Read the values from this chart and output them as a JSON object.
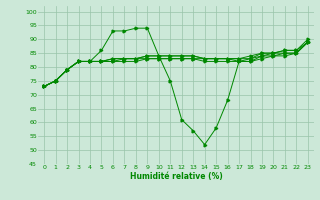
{
  "bg_color": "#cce8d8",
  "grid_color": "#99c4aa",
  "line_color": "#008800",
  "xlabel": "Humidité relative (%)",
  "ylim": [
    45,
    102
  ],
  "xlim": [
    -0.5,
    23.5
  ],
  "yticks": [
    45,
    50,
    55,
    60,
    65,
    70,
    75,
    80,
    85,
    90,
    95,
    100
  ],
  "xticks": [
    0,
    1,
    2,
    3,
    4,
    5,
    6,
    7,
    8,
    9,
    10,
    11,
    12,
    13,
    14,
    15,
    16,
    17,
    18,
    19,
    20,
    21,
    22,
    23
  ],
  "lines": [
    {
      "x": [
        0,
        1,
        2,
        3,
        4,
        5,
        6,
        7,
        8,
        9,
        10,
        11,
        12,
        13,
        14,
        15,
        16,
        17,
        18,
        19,
        20,
        21,
        22,
        23
      ],
      "y": [
        73,
        75,
        79,
        82,
        82,
        86,
        93,
        93,
        94,
        94,
        84,
        75,
        61,
        57,
        52,
        58,
        68,
        82,
        83,
        85,
        85,
        86,
        86,
        90
      ]
    },
    {
      "x": [
        0,
        1,
        2,
        3,
        4,
        5,
        6,
        7,
        8,
        9,
        10,
        11,
        12,
        13,
        14,
        15,
        16,
        17,
        18,
        19,
        20,
        21,
        22,
        23
      ],
      "y": [
        73,
        75,
        79,
        82,
        82,
        82,
        83,
        83,
        83,
        84,
        84,
        84,
        84,
        84,
        83,
        83,
        83,
        83,
        84,
        85,
        85,
        86,
        86,
        89
      ]
    },
    {
      "x": [
        0,
        1,
        2,
        3,
        4,
        5,
        6,
        7,
        8,
        9,
        10,
        11,
        12,
        13,
        14,
        15,
        16,
        17,
        18,
        19,
        20,
        21,
        22,
        23
      ],
      "y": [
        73,
        75,
        79,
        82,
        82,
        82,
        83,
        83,
        83,
        84,
        84,
        84,
        84,
        84,
        83,
        83,
        83,
        83,
        83,
        84,
        85,
        85,
        85,
        89
      ]
    },
    {
      "x": [
        0,
        1,
        2,
        3,
        4,
        5,
        6,
        7,
        8,
        9,
        10,
        11,
        12,
        13,
        14,
        15,
        16,
        17,
        18,
        19,
        20,
        21,
        22,
        23
      ],
      "y": [
        73,
        75,
        79,
        82,
        82,
        82,
        82,
        83,
        83,
        83,
        83,
        83,
        83,
        83,
        83,
        83,
        83,
        82,
        82,
        84,
        84,
        85,
        85,
        89
      ]
    },
    {
      "x": [
        0,
        1,
        2,
        3,
        4,
        5,
        6,
        7,
        8,
        9,
        10,
        11,
        12,
        13,
        14,
        15,
        16,
        17,
        18,
        19,
        20,
        21,
        22,
        23
      ],
      "y": [
        73,
        75,
        79,
        82,
        82,
        82,
        82,
        82,
        82,
        83,
        83,
        83,
        83,
        83,
        82,
        82,
        82,
        82,
        82,
        83,
        84,
        84,
        85,
        89
      ]
    }
  ]
}
